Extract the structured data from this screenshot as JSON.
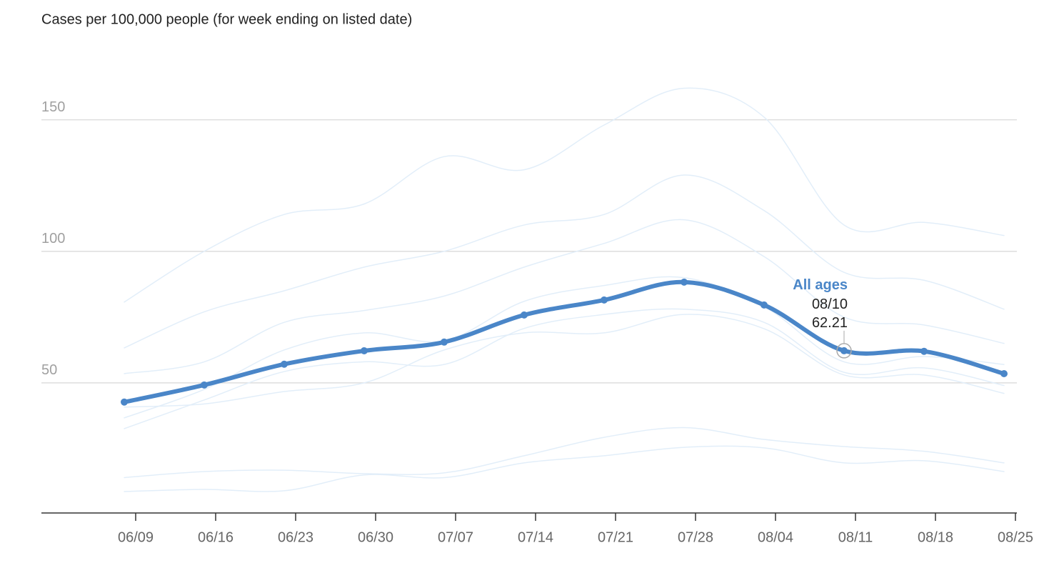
{
  "chart_data": {
    "type": "line",
    "title": "Cases per 100,000 people (for week ending on listed date)",
    "x": [
      "06/08",
      "06/15",
      "06/22",
      "06/29",
      "07/06",
      "07/13",
      "07/20",
      "07/27",
      "08/03",
      "08/10",
      "08/17",
      "08/24"
    ],
    "xlim": [
      "06/01",
      "08/25"
    ],
    "xticks": [
      "06/09",
      "06/16",
      "06/23",
      "06/30",
      "07/07",
      "07/14",
      "07/21",
      "07/28",
      "08/04",
      "08/11",
      "08/18",
      "08/25"
    ],
    "ylim": [
      0,
      170
    ],
    "yticks": [
      50,
      100,
      150
    ],
    "grid": true,
    "series": [
      {
        "name": "All ages",
        "color": "#4a86c8",
        "values": [
          42.7,
          49.2,
          57.1,
          62.2,
          65.5,
          75.8,
          81.5,
          88.3,
          79.6,
          62.21,
          62.0,
          53.5
        ]
      },
      {
        "color": "#e2eef9",
        "values": [
          80.7,
          100,
          114,
          118,
          136,
          131,
          148,
          162,
          151,
          110,
          111,
          106
        ]
      },
      {
        "color": "#e2eef9",
        "values": [
          63.3,
          77,
          85,
          94,
          100,
          110,
          114,
          129,
          115.5,
          92,
          89,
          78
        ]
      },
      {
        "color": "#e2eef9",
        "values": [
          53.5,
          58,
          73,
          77.5,
          83,
          94,
          103,
          112,
          98,
          75,
          72,
          65
        ]
      },
      {
        "color": "#e2eef9",
        "values": [
          36.7,
          47.5,
          62.5,
          69,
          66,
          81,
          87,
          90,
          79,
          58,
          60,
          57
        ]
      },
      {
        "color": "#e2eef9",
        "values": [
          32.6,
          43.5,
          54.3,
          58,
          57,
          70.7,
          76,
          78,
          73,
          54,
          55.7,
          49
        ]
      },
      {
        "color": "#e2eef9",
        "values": [
          40.8,
          42,
          46.7,
          50,
          62.5,
          69,
          69,
          76,
          70.6,
          53,
          53,
          46
        ]
      },
      {
        "color": "#e2eef9",
        "values": [
          14,
          16.3,
          16.8,
          15.5,
          15.8,
          22.3,
          29.3,
          33,
          28.5,
          25.8,
          24,
          19.6
        ]
      },
      {
        "color": "#e2eef9",
        "values": [
          8.7,
          9.5,
          9,
          15,
          14,
          19.6,
          22.3,
          25.5,
          25.3,
          19.6,
          20.4,
          16.3
        ]
      }
    ]
  }
}
